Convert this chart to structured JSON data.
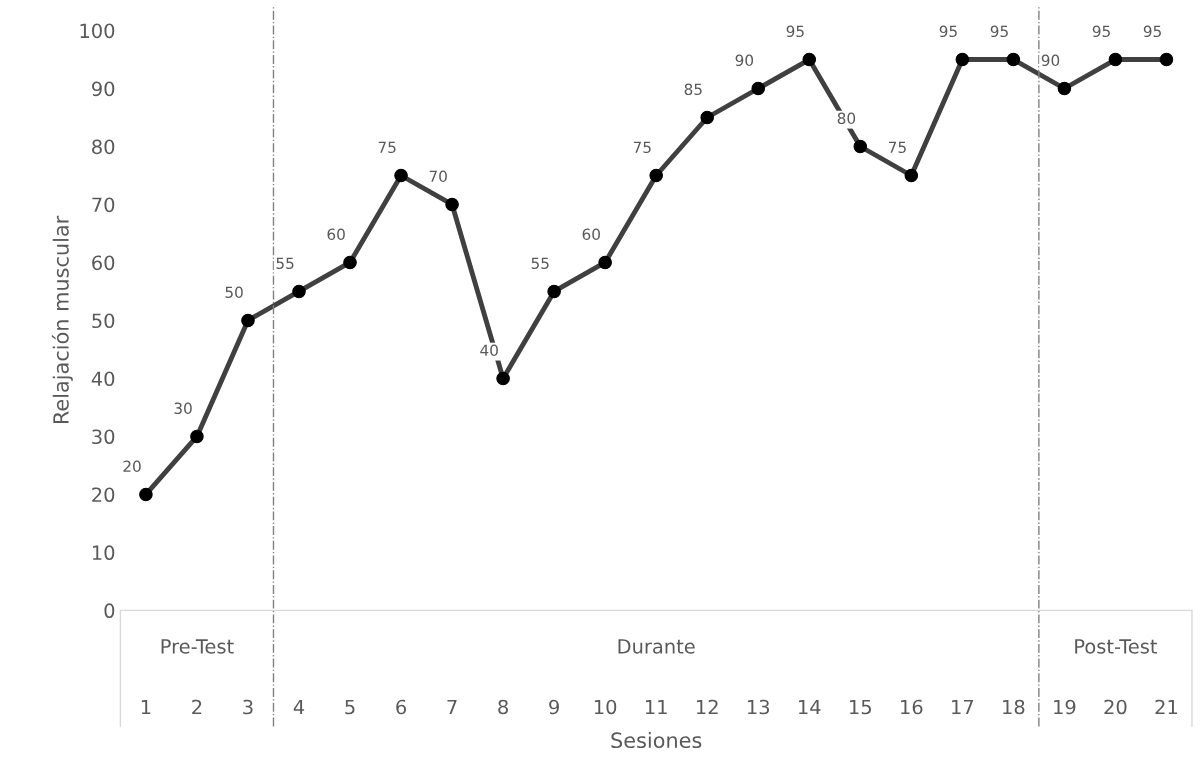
{
  "chart_data": {
    "type": "line",
    "xlabel": "Sesiones",
    "ylabel": "Relajación muscular",
    "x": [
      1,
      2,
      3,
      4,
      5,
      6,
      7,
      8,
      9,
      10,
      11,
      12,
      13,
      14,
      15,
      16,
      17,
      18,
      19,
      20,
      21
    ],
    "xlim": [
      0.5,
      21.5
    ],
    "xticks": [
      1,
      2,
      3,
      4,
      5,
      6,
      7,
      8,
      9,
      10,
      11,
      12,
      13,
      14,
      15,
      16,
      17,
      18,
      19,
      20,
      21
    ],
    "ylim": [
      0,
      100
    ],
    "yticks": [
      0,
      10,
      20,
      30,
      40,
      50,
      60,
      70,
      80,
      90,
      100
    ],
    "series": [
      {
        "color": "#404040",
        "values": [
          20,
          30,
          50,
          55,
          60,
          75,
          70,
          40,
          55,
          60,
          75,
          85,
          90,
          95,
          80,
          75,
          95,
          95,
          90,
          95,
          95
        ]
      }
    ],
    "marker": "circle",
    "line_style": "solid",
    "data_labels": true,
    "grid": false,
    "ref_lines": [
      {
        "axis": "x",
        "value": 3.5,
        "color": "#808080",
        "line_style": "dashdot"
      },
      {
        "axis": "x",
        "value": 18.5,
        "color": "#808080",
        "line_style": "dashdot"
      }
    ],
    "annotations": [
      "Pre-Test",
      "Durante",
      "Post-Test"
    ]
  }
}
